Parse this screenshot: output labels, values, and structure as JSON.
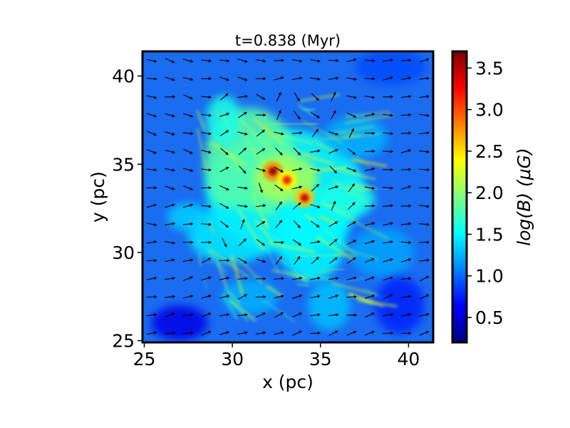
{
  "chart_data": {
    "type": "heatmap",
    "title": "t=0.838 (Myr)",
    "xlabel": "x (pc)",
    "ylabel": "y (pc)",
    "xlim": [
      24.9,
      41.4
    ],
    "ylim": [
      24.9,
      41.4
    ],
    "xticks": [
      25,
      30,
      35,
      40
    ],
    "yticks": [
      25,
      30,
      35,
      40
    ],
    "xtick_labels": [
      "25",
      "30",
      "35",
      "40"
    ],
    "ytick_labels": [
      "25",
      "30",
      "35",
      "40"
    ],
    "colormap": "jet",
    "colorbar": {
      "label": "log(B) (μG)",
      "range": [
        0.2,
        3.7
      ],
      "ticks": [
        0.5,
        1.0,
        1.5,
        2.0,
        2.5,
        3.0,
        3.5
      ],
      "tick_labels": [
        "0.5",
        "1.0",
        "1.5",
        "2.0",
        "2.5",
        "3.0",
        "3.5"
      ]
    },
    "field_peaks": [
      {
        "x": 32.3,
        "y": 34.6,
        "value": 3.6
      },
      {
        "x": 33.1,
        "y": 34.1,
        "value": 3.2
      },
      {
        "x": 34.1,
        "y": 33.1,
        "value": 3.4
      }
    ],
    "overlay": "magnetic field direction vectors",
    "grid": false
  },
  "colors": {
    "arrow": "#000000",
    "frame": "#000000",
    "jet_stops": [
      "#00007f",
      "#0000ff",
      "#007fff",
      "#00ffff",
      "#7fff7f",
      "#ffff00",
      "#ff7f00",
      "#ff0000",
      "#7f0000"
    ]
  }
}
